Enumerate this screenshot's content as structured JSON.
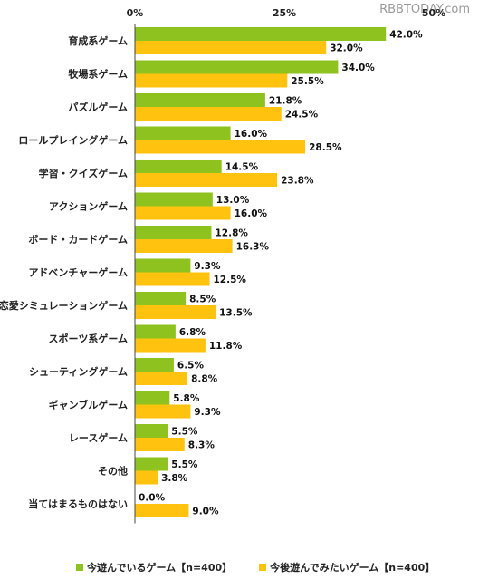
{
  "watermark": "RBBTODAY.com",
  "colors": {
    "current": "#8DC21F",
    "future": "#FFC20E"
  },
  "chart_data": {
    "type": "bar",
    "orientation": "horizontal",
    "x_ticks": [
      "0%",
      "25%",
      "50%"
    ],
    "xlim": [
      0,
      50
    ],
    "categories": [
      "育成系ゲーム",
      "牧場系ゲーム",
      "パズルゲーム",
      "ロールプレイングゲーム",
      "学習・クイズゲーム",
      "アクションゲーム",
      "ボード・カードゲーム",
      "アドベンチャーゲーム",
      "恋愛シミュレーションゲーム",
      "スポーツ系ゲーム",
      "シューティングゲーム",
      "ギャンブルゲーム",
      "レースゲーム",
      "その他",
      "当てはまるものはない"
    ],
    "series": [
      {
        "name": "今遊んでいるゲーム【n=400】",
        "values": [
          42.0,
          34.0,
          21.8,
          16.0,
          14.5,
          13.0,
          12.8,
          9.3,
          8.5,
          6.8,
          6.5,
          5.8,
          5.5,
          5.5,
          0.0
        ],
        "labels": [
          "42.0%",
          "34.0%",
          "21.8%",
          "16.0%",
          "14.5%",
          "13.0%",
          "12.8%",
          "9.3%",
          "8.5%",
          "6.8%",
          "6.5%",
          "5.8%",
          "5.5%",
          "5.5%",
          "0.0%"
        ]
      },
      {
        "name": "今後遊んでみたいゲーム【n=400】",
        "values": [
          32.0,
          25.5,
          24.5,
          28.5,
          23.8,
          16.0,
          16.3,
          12.5,
          13.5,
          11.8,
          8.8,
          9.3,
          8.3,
          3.8,
          9.0
        ],
        "labels": [
          "32.0%",
          "25.5%",
          "24.5%",
          "28.5%",
          "23.8%",
          "16.0%",
          "16.3%",
          "12.5%",
          "13.5%",
          "11.8%",
          "8.8%",
          "9.3%",
          "8.3%",
          "3.8%",
          "9.0%"
        ]
      }
    ],
    "legend_position": "bottom",
    "grid": false
  }
}
